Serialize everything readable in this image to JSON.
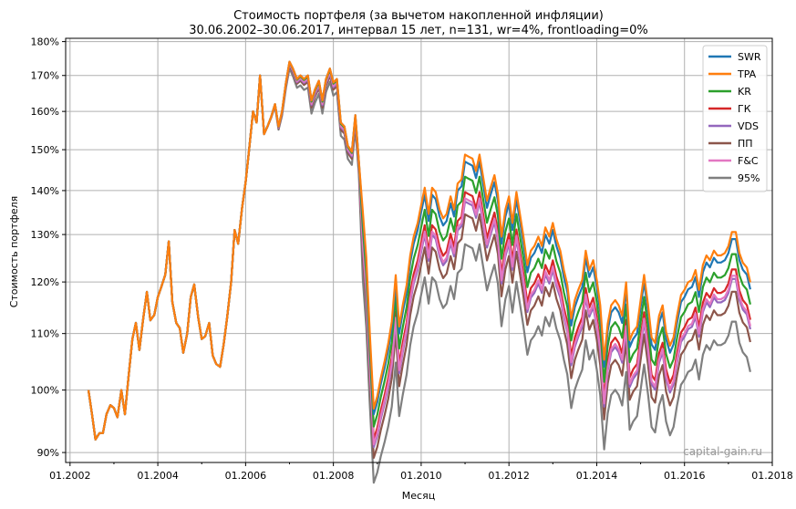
{
  "chart_data": {
    "type": "line",
    "title_line1": "Стоимость портфеля (за вычетом накопленной инфляции)",
    "title_line2": "30.06.2002–30.06.2017, интервал 15 лет, n=131, wr=4%, frontloading=0%",
    "xlabel": "Месяц",
    "ylabel": "Стоимость портфеля",
    "watermark": "capital-gain.ru",
    "scale": "log",
    "xlim": [
      2001.9,
      2018.0
    ],
    "ylim": [
      88.5,
      181
    ],
    "grid": true,
    "legend_position": "top-right",
    "x_ticks": [
      {
        "value": 2002,
        "label": "01.2002"
      },
      {
        "value": 2004,
        "label": "01.2004"
      },
      {
        "value": 2006,
        "label": "01.2006"
      },
      {
        "value": 2008,
        "label": "01.2008"
      },
      {
        "value": 2010,
        "label": "01.2010"
      },
      {
        "value": 2012,
        "label": "01.2012"
      },
      {
        "value": 2014,
        "label": "01.2014"
      },
      {
        "value": 2016,
        "label": "01.2016"
      },
      {
        "value": 2018,
        "label": "01.2018"
      }
    ],
    "y_ticks": [
      {
        "value": 90,
        "label": "90%"
      },
      {
        "value": 100,
        "label": "100%"
      },
      {
        "value": 110,
        "label": "110%"
      },
      {
        "value": 120,
        "label": "120%"
      },
      {
        "value": 130,
        "label": "130%"
      },
      {
        "value": 140,
        "label": "140%"
      },
      {
        "value": 150,
        "label": "150%"
      },
      {
        "value": 160,
        "label": "160%"
      },
      {
        "value": 170,
        "label": "170%"
      },
      {
        "value": 180,
        "label": "180%"
      }
    ],
    "series": [
      {
        "name": "SWR",
        "color": "#1f77b4",
        "pre2008": 0.0,
        "post2008": 0.0
      },
      {
        "name": "TPA",
        "color": "#ff7f0e",
        "pre2008": 0.0,
        "post2008": 0.012
      },
      {
        "name": "KR",
        "color": "#2ca02c",
        "pre2008": -0.002,
        "post2008": -0.025
      },
      {
        "name": "ГК",
        "color": "#d62728",
        "pre2008": -0.005,
        "post2008": -0.05
      },
      {
        "name": "VDS",
        "color": "#9467bd",
        "pre2008": -0.008,
        "post2008": -0.065
      },
      {
        "name": "ПП",
        "color": "#8c564b",
        "pre2008": -0.012,
        "post2008": -0.085
      },
      {
        "name": "F&C",
        "color": "#e377c2",
        "pre2008": -0.006,
        "post2008": -0.06
      },
      {
        "name": "95%",
        "color": "#7f7f7f",
        "pre2008": -0.022,
        "post2008": -0.13
      }
    ],
    "divergence_start": 2006.5,
    "divergence_full": 2009.5,
    "base": [
      [
        2002.42,
        100
      ],
      [
        2002.5,
        96
      ],
      [
        2002.58,
        92
      ],
      [
        2002.67,
        93
      ],
      [
        2002.75,
        93
      ],
      [
        2002.83,
        96
      ],
      [
        2002.92,
        97.5
      ],
      [
        2003.0,
        97
      ],
      [
        2003.08,
        95.5
      ],
      [
        2003.17,
        100
      ],
      [
        2003.25,
        96
      ],
      [
        2003.33,
        102
      ],
      [
        2003.42,
        109
      ],
      [
        2003.5,
        112
      ],
      [
        2003.58,
        107
      ],
      [
        2003.67,
        113
      ],
      [
        2003.75,
        118
      ],
      [
        2003.83,
        112.5
      ],
      [
        2003.92,
        113.5
      ],
      [
        2004.0,
        117
      ],
      [
        2004.08,
        119
      ],
      [
        2004.17,
        121.5
      ],
      [
        2004.25,
        128.5
      ],
      [
        2004.33,
        116
      ],
      [
        2004.42,
        112
      ],
      [
        2004.5,
        111
      ],
      [
        2004.58,
        106.5
      ],
      [
        2004.67,
        110
      ],
      [
        2004.75,
        117
      ],
      [
        2004.83,
        119.5
      ],
      [
        2004.92,
        113
      ],
      [
        2005.0,
        109
      ],
      [
        2005.08,
        109.5
      ],
      [
        2005.17,
        112
      ],
      [
        2005.25,
        106
      ],
      [
        2005.33,
        104.5
      ],
      [
        2005.42,
        104
      ],
      [
        2005.5,
        108
      ],
      [
        2005.58,
        113
      ],
      [
        2005.67,
        120
      ],
      [
        2005.75,
        131
      ],
      [
        2005.83,
        128
      ],
      [
        2005.92,
        136
      ],
      [
        2006.0,
        142
      ],
      [
        2006.08,
        150
      ],
      [
        2006.17,
        160
      ],
      [
        2006.25,
        157
      ],
      [
        2006.33,
        170
      ],
      [
        2006.42,
        154
      ],
      [
        2006.5,
        156
      ],
      [
        2006.58,
        158.5
      ],
      [
        2006.67,
        162
      ],
      [
        2006.75,
        156
      ],
      [
        2006.83,
        160
      ],
      [
        2006.92,
        168
      ],
      [
        2007.0,
        174
      ],
      [
        2007.08,
        172
      ],
      [
        2007.17,
        169
      ],
      [
        2007.25,
        170
      ],
      [
        2007.33,
        169
      ],
      [
        2007.42,
        170
      ],
      [
        2007.5,
        163
      ],
      [
        2007.58,
        166
      ],
      [
        2007.67,
        168.5
      ],
      [
        2007.75,
        163
      ],
      [
        2007.83,
        169
      ],
      [
        2007.92,
        172
      ],
      [
        2008.0,
        168
      ],
      [
        2008.08,
        169
      ],
      [
        2008.17,
        157
      ],
      [
        2008.25,
        156
      ],
      [
        2008.33,
        151
      ],
      [
        2008.42,
        149.5
      ],
      [
        2008.5,
        159
      ],
      [
        2008.58,
        147
      ],
      [
        2008.67,
        134
      ],
      [
        2008.75,
        124
      ],
      [
        2008.83,
        109
      ],
      [
        2008.92,
        96
      ],
      [
        2009.0,
        98
      ],
      [
        2009.08,
        101
      ],
      [
        2009.17,
        104
      ],
      [
        2009.25,
        107
      ],
      [
        2009.33,
        111
      ],
      [
        2009.42,
        120
      ],
      [
        2009.5,
        110
      ],
      [
        2009.58,
        114
      ],
      [
        2009.67,
        118
      ],
      [
        2009.75,
        124
      ],
      [
        2009.83,
        128
      ],
      [
        2009.92,
        131
      ],
      [
        2010.0,
        135
      ],
      [
        2010.08,
        139
      ],
      [
        2010.17,
        133
      ],
      [
        2010.25,
        139
      ],
      [
        2010.33,
        138
      ],
      [
        2010.42,
        134
      ],
      [
        2010.5,
        132
      ],
      [
        2010.58,
        133
      ],
      [
        2010.67,
        137
      ],
      [
        2010.75,
        134
      ],
      [
        2010.83,
        140
      ],
      [
        2010.92,
        141
      ],
      [
        2011.0,
        147
      ],
      [
        2011.08,
        146.5
      ],
      [
        2011.17,
        146
      ],
      [
        2011.25,
        143
      ],
      [
        2011.33,
        147
      ],
      [
        2011.42,
        141
      ],
      [
        2011.5,
        136
      ],
      [
        2011.58,
        139
      ],
      [
        2011.67,
        142
      ],
      [
        2011.75,
        137.5
      ],
      [
        2011.83,
        128
      ],
      [
        2011.92,
        134
      ],
      [
        2012.0,
        137
      ],
      [
        2012.08,
        131
      ],
      [
        2012.17,
        138
      ],
      [
        2012.25,
        133
      ],
      [
        2012.33,
        128
      ],
      [
        2012.42,
        122
      ],
      [
        2012.5,
        125
      ],
      [
        2012.58,
        126
      ],
      [
        2012.67,
        128
      ],
      [
        2012.75,
        126
      ],
      [
        2012.83,
        130
      ],
      [
        2012.92,
        128
      ],
      [
        2013.0,
        131
      ],
      [
        2013.08,
        127.5
      ],
      [
        2013.17,
        125
      ],
      [
        2013.25,
        121
      ],
      [
        2013.33,
        118
      ],
      [
        2013.42,
        111.5
      ],
      [
        2013.5,
        115
      ],
      [
        2013.58,
        117
      ],
      [
        2013.67,
        119
      ],
      [
        2013.75,
        125
      ],
      [
        2013.83,
        121
      ],
      [
        2013.92,
        123
      ],
      [
        2014.0,
        119
      ],
      [
        2014.08,
        114
      ],
      [
        2014.17,
        104
      ],
      [
        2014.25,
        110.5
      ],
      [
        2014.33,
        114
      ],
      [
        2014.42,
        115
      ],
      [
        2014.5,
        114
      ],
      [
        2014.58,
        112
      ],
      [
        2014.67,
        118.5
      ],
      [
        2014.75,
        107.5
      ],
      [
        2014.83,
        109
      ],
      [
        2014.92,
        110
      ],
      [
        2015.0,
        115
      ],
      [
        2015.08,
        120
      ],
      [
        2015.17,
        114
      ],
      [
        2015.25,
        108
      ],
      [
        2015.33,
        107
      ],
      [
        2015.42,
        112
      ],
      [
        2015.5,
        114
      ],
      [
        2015.58,
        109
      ],
      [
        2015.67,
        106.5
      ],
      [
        2015.75,
        108
      ],
      [
        2015.83,
        112
      ],
      [
        2015.92,
        116
      ],
      [
        2016.0,
        117
      ],
      [
        2016.08,
        118.5
      ],
      [
        2016.17,
        119
      ],
      [
        2016.25,
        121
      ],
      [
        2016.33,
        117
      ],
      [
        2016.42,
        122
      ],
      [
        2016.5,
        124
      ],
      [
        2016.58,
        123
      ],
      [
        2016.67,
        125
      ],
      [
        2016.75,
        124
      ],
      [
        2016.83,
        124
      ],
      [
        2016.92,
        124.5
      ],
      [
        2017.0,
        126
      ],
      [
        2017.08,
        129
      ],
      [
        2017.17,
        129
      ],
      [
        2017.25,
        124.5
      ],
      [
        2017.33,
        122.5
      ],
      [
        2017.42,
        121.5
      ],
      [
        2017.5,
        118.5
      ]
    ]
  }
}
